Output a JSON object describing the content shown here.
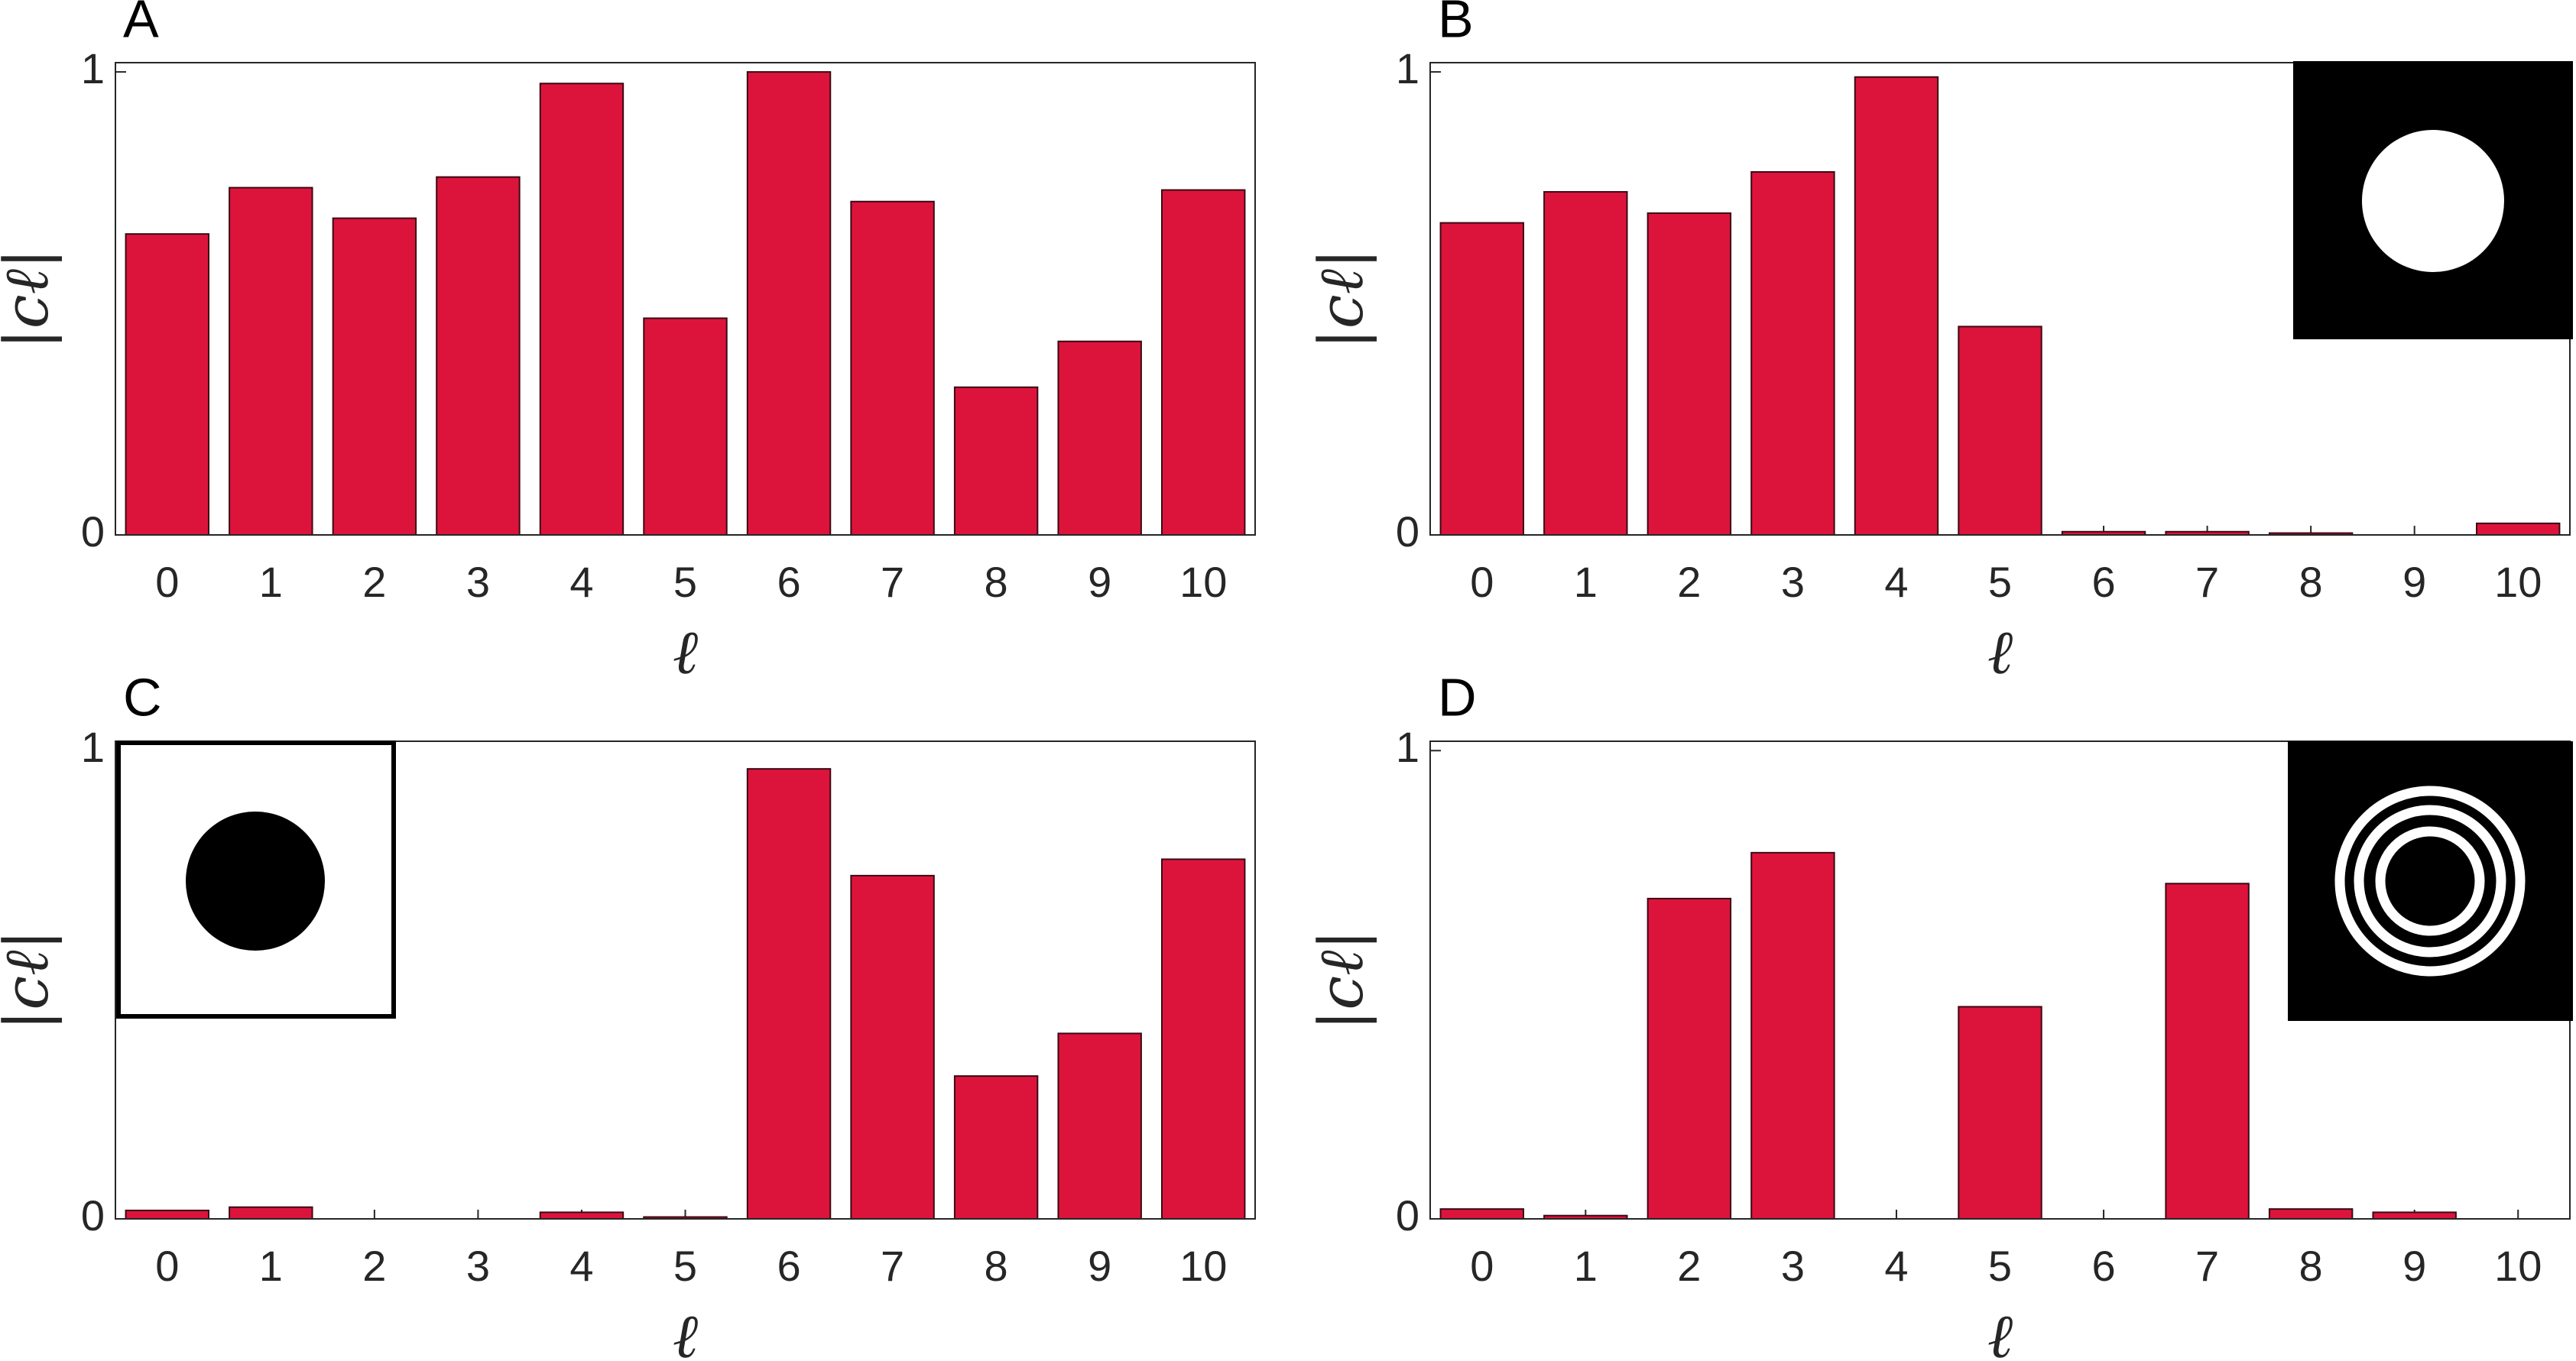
{
  "chart_data": [
    {
      "type": "bar",
      "panel": "A",
      "xlabel": "ℓ",
      "ylabel": "|cℓ|",
      "categories": [
        "0",
        "1",
        "2",
        "3",
        "4",
        "5",
        "6",
        "7",
        "8",
        "9",
        "10"
      ],
      "values": [
        0.65,
        0.75,
        0.684,
        0.773,
        0.975,
        0.468,
        1.0,
        0.72,
        0.319,
        0.418,
        0.745
      ],
      "color": "#dc143c",
      "ylim": [
        0,
        1.02
      ],
      "yticks": [
        0,
        1
      ]
    },
    {
      "type": "bar",
      "panel": "B",
      "xlabel": "ℓ",
      "ylabel": "|cℓ|",
      "categories": [
        "0",
        "1",
        "2",
        "3",
        "4",
        "5",
        "6",
        "7",
        "8",
        "9",
        "10"
      ],
      "values": [
        0.674,
        0.741,
        0.695,
        0.784,
        0.989,
        0.45,
        0.007,
        0.007,
        0.004,
        0,
        0.025
      ],
      "color": "#dc143c",
      "ylim": [
        0,
        1.02
      ],
      "yticks": [
        0,
        1
      ]
    },
    {
      "type": "bar",
      "panel": "C",
      "xlabel": "ℓ",
      "ylabel": "|cℓ|",
      "categories": [
        "0",
        "1",
        "2",
        "3",
        "4",
        "5",
        "6",
        "7",
        "8",
        "9",
        "10"
      ],
      "values": [
        0.018,
        0.025,
        0,
        0,
        0.014,
        0.004,
        0.961,
        0.733,
        0.305,
        0.396,
        0.768
      ],
      "color": "#dc143c",
      "ylim": [
        0,
        1.02
      ],
      "yticks": [
        0,
        1
      ]
    },
    {
      "type": "bar",
      "panel": "D",
      "xlabel": "ℓ",
      "ylabel": "|cℓ|",
      "categories": [
        "0",
        "1",
        "2",
        "3",
        "4",
        "5",
        "6",
        "7",
        "8",
        "9",
        "10"
      ],
      "values": [
        0.021,
        0.007,
        0.684,
        0.782,
        0,
        0.453,
        0,
        0.716,
        0.021,
        0.014,
        0
      ],
      "color": "#dc143c",
      "ylim": [
        0,
        1.02
      ],
      "yticks": [
        0,
        1
      ]
    }
  ]
}
